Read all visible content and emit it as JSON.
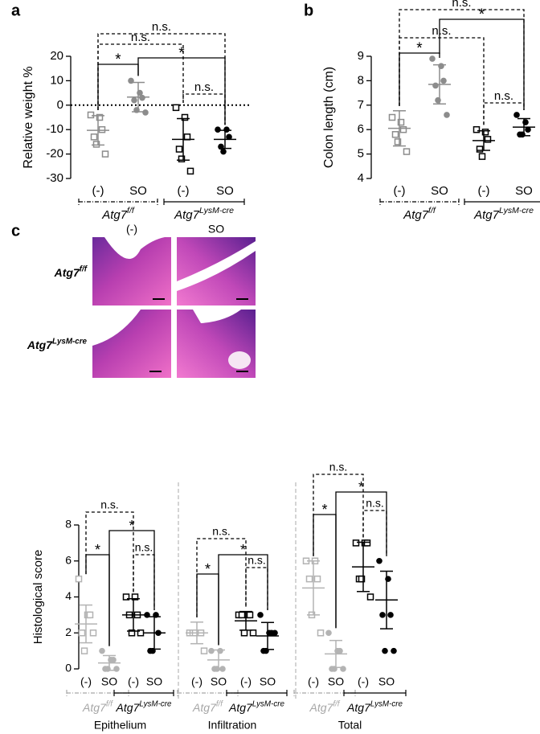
{
  "chart_data": [
    {
      "type": "dot",
      "panel": "a",
      "ylabel": "Relative weight %",
      "ylim": [
        -30,
        20
      ],
      "yticks": [
        -30,
        -20,
        -10,
        0,
        10,
        20
      ],
      "hline": 0,
      "groups": [
        {
          "category": "(-)",
          "color": "#8c8c8c",
          "marker": "square",
          "points": [
            -4,
            -5,
            -10,
            -13,
            -16,
            -20
          ],
          "mean": -10.3,
          "sd": 6.0
        },
        {
          "category": "SO",
          "color": "#8c8c8c",
          "marker": "circle",
          "points": [
            10,
            5,
            3,
            2,
            -2,
            -3
          ],
          "mean": 3.3,
          "sd": 6.0
        },
        {
          "category": "(-)",
          "color": "#000000",
          "marker": "square",
          "points": [
            -1,
            -5,
            -13,
            -18,
            -22,
            -27
          ],
          "mean": -14,
          "sd": 8.5
        },
        {
          "category": "SO",
          "color": "#000000",
          "marker": "circle",
          "points": [
            -10,
            -10,
            -13,
            -17,
            -19
          ],
          "mean": -14,
          "sd": 3.7
        }
      ],
      "genotypes": [
        {
          "name": "Atg7",
          "sup": "f/f",
          "color": "#000000",
          "from": 0,
          "to": 1,
          "dashed": true
        },
        {
          "name": "Atg7",
          "sup": "LysM-cre",
          "color": "#000000",
          "from": 2,
          "to": 3,
          "dashed": false
        }
      ],
      "brackets": [
        {
          "from": 0,
          "to": 3,
          "label": "n.s.",
          "dashed": true
        },
        {
          "from": 0,
          "to": 2,
          "label": "n.s.",
          "dashed": true
        },
        {
          "from": 0,
          "to": 1,
          "label": "*",
          "dashed": false
        },
        {
          "from": 1,
          "to": 3,
          "label": "*",
          "dashed": false
        },
        {
          "from": 2,
          "to": 3,
          "label": "n.s.",
          "dashed": true
        }
      ]
    },
    {
      "type": "dot",
      "panel": "b",
      "ylabel": "Colon length (cm)",
      "ylim": [
        4,
        9
      ],
      "yticks": [
        4,
        5,
        6,
        7,
        8,
        9
      ],
      "groups": [
        {
          "category": "(-)",
          "color": "#8c8c8c",
          "marker": "square",
          "points": [
            6.5,
            6.3,
            6.0,
            5.8,
            5.5,
            5.1
          ],
          "mean": 6.05,
          "sd": 0.72
        },
        {
          "category": "SO",
          "color": "#8c8c8c",
          "marker": "circle",
          "points": [
            8.9,
            8.6,
            8.0,
            7.8,
            7.2,
            6.6
          ],
          "mean": 7.85,
          "sd": 0.8
        },
        {
          "category": "(-)",
          "color": "#000000",
          "marker": "square",
          "points": [
            6.0,
            5.9,
            5.6,
            5.2,
            4.9
          ],
          "mean": 5.55,
          "sd": 0.4
        },
        {
          "category": "SO",
          "color": "#000000",
          "marker": "circle",
          "points": [
            6.6,
            6.3,
            6.0,
            5.8,
            5.8
          ],
          "mean": 6.1,
          "sd": 0.35
        }
      ],
      "genotypes": [
        {
          "name": "Atg7",
          "sup": "f/f",
          "color": "#000000",
          "from": 0,
          "to": 1,
          "dashed": true
        },
        {
          "name": "Atg7",
          "sup": "LysM-cre",
          "color": "#000000",
          "from": 2,
          "to": 3,
          "dashed": false
        }
      ],
      "brackets": [
        {
          "from": 0,
          "to": 3,
          "label": "n.s.",
          "dashed": true
        },
        {
          "from": 1,
          "to": 3,
          "label": "*",
          "dashed": false
        },
        {
          "from": 0,
          "to": 2,
          "label": "n.s.",
          "dashed": true
        },
        {
          "from": 0,
          "to": 1,
          "label": "*",
          "dashed": false
        },
        {
          "from": 2,
          "to": 3,
          "label": "n.s.",
          "dashed": true
        }
      ]
    },
    {
      "type": "image-grid",
      "panel": "c",
      "columns": [
        "(-)",
        "SO"
      ],
      "rows": [
        {
          "name": "Atg7",
          "sup": "f/f"
        },
        {
          "name": "Atg7",
          "sup": "LysM-cre"
        }
      ]
    },
    {
      "type": "dot",
      "ylabel": "Histological score",
      "ylim": [
        0,
        8
      ],
      "yticks": [
        0,
        2,
        4,
        6,
        8
      ],
      "sections": [
        {
          "name": "Epithelium",
          "groups": [
            {
              "category": "(-)",
              "color": "#b3b3b3",
              "marker": "square",
              "points": [
                5,
                3,
                3,
                2,
                1,
                2
              ],
              "mean": 2.5,
              "sd": 1.05
            },
            {
              "category": "SO",
              "color": "#b3b3b3",
              "marker": "circle",
              "points": [
                1,
                0.5,
                0.5,
                0,
                0,
                0
              ],
              "mean": 0.33,
              "sd": 0.41
            },
            {
              "category": "(-)",
              "color": "#000000",
              "marker": "square",
              "points": [
                4,
                4,
                3,
                3,
                2,
                2
              ],
              "mean": 3,
              "sd": 0.9
            },
            {
              "category": "SO",
              "color": "#000000",
              "marker": "circle",
              "points": [
                3,
                3,
                2,
                1,
                1
              ],
              "mean": 2,
              "sd": 0.9
            }
          ],
          "genotypes": [
            {
              "name": "Atg7",
              "sup": "f/f",
              "color": "#a6a6a6",
              "from": 0,
              "to": 1,
              "dashed": true
            },
            {
              "name": "Atg7",
              "sup": "LysM-cre",
              "color": "#000000",
              "from": 2,
              "to": 3,
              "dashed": false
            }
          ],
          "brackets": [
            {
              "from": 0,
              "to": 2,
              "label": "n.s.",
              "dashed": true
            },
            {
              "from": 1,
              "to": 3,
              "label": "*",
              "dashed": false
            },
            {
              "from": 0,
              "to": 1,
              "label": "*",
              "dashed": false
            },
            {
              "from": 2,
              "to": 3,
              "label": "n.s.",
              "dashed": true
            }
          ]
        },
        {
          "name": "Infiltration",
          "groups": [
            {
              "category": "(-)",
              "color": "#b3b3b3",
              "marker": "square",
              "points": [
                2,
                2,
                2,
                2,
                2,
                1
              ],
              "mean": 2,
              "sd": 0.6
            },
            {
              "category": "SO",
              "color": "#b3b3b3",
              "marker": "circle",
              "points": [
                1,
                1,
                0,
                0,
                0
              ],
              "mean": 0.5,
              "sd": 0.55
            },
            {
              "category": "(-)",
              "color": "#000000",
              "marker": "square",
              "points": [
                3,
                3,
                3,
                3,
                2,
                2
              ],
              "mean": 2.67,
              "sd": 0.52
            },
            {
              "category": "SO",
              "color": "#000000",
              "marker": "circle",
              "points": [
                3,
                2,
                2,
                1,
                1,
                2
              ],
              "mean": 1.83,
              "sd": 0.75
            }
          ],
          "genotypes": [
            {
              "name": "Atg7",
              "sup": "f/f",
              "color": "#a6a6a6",
              "from": 0,
              "to": 1,
              "dashed": true
            },
            {
              "name": "Atg7",
              "sup": "LysM-cre",
              "color": "#000000",
              "from": 2,
              "to": 3,
              "dashed": false
            }
          ],
          "brackets": [
            {
              "from": 0,
              "to": 2,
              "label": "n.s.",
              "dashed": true
            },
            {
              "from": 1,
              "to": 3,
              "label": "*",
              "dashed": false
            },
            {
              "from": 0,
              "to": 1,
              "label": "*",
              "dashed": false
            },
            {
              "from": 2,
              "to": 3,
              "label": "n.s.",
              "dashed": true
            }
          ]
        },
        {
          "name": "Total",
          "groups": [
            {
              "category": "(-)",
              "color": "#b3b3b3",
              "marker": "square",
              "points": [
                6,
                6,
                5,
                5,
                3,
                2
              ],
              "mean": 4.5,
              "sd": 1.5
            },
            {
              "category": "SO",
              "color": "#b3b3b3",
              "marker": "circle",
              "points": [
                2,
                1,
                1,
                0,
                0,
                0
              ],
              "mean": 0.83,
              "sd": 0.75
            },
            {
              "category": "(-)",
              "color": "#000000",
              "marker": "square",
              "points": [
                7,
                7,
                7,
                5,
                5,
                4
              ],
              "mean": 5.67,
              "sd": 1.37
            },
            {
              "category": "SO",
              "color": "#000000",
              "marker": "circle",
              "points": [
                6,
                5,
                3,
                3,
                1,
                1
              ],
              "mean": 3.83,
              "sd": 1.6
            }
          ],
          "genotypes": [
            {
              "name": "Atg7",
              "sup": "f/f",
              "color": "#a6a6a6",
              "from": 0,
              "to": 1,
              "dashed": true
            },
            {
              "name": "Atg7",
              "sup": "LysM-cre",
              "color": "#000000",
              "from": 2,
              "to": 3,
              "dashed": false
            }
          ],
          "brackets": [
            {
              "from": 0,
              "to": 2,
              "label": "n.s.",
              "dashed": true
            },
            {
              "from": 1,
              "to": 3,
              "label": "*",
              "dashed": false
            },
            {
              "from": 0,
              "to": 1,
              "label": "*",
              "dashed": false
            },
            {
              "from": 2,
              "to": 3,
              "label": "n.s.",
              "dashed": true
            }
          ]
        }
      ]
    }
  ]
}
